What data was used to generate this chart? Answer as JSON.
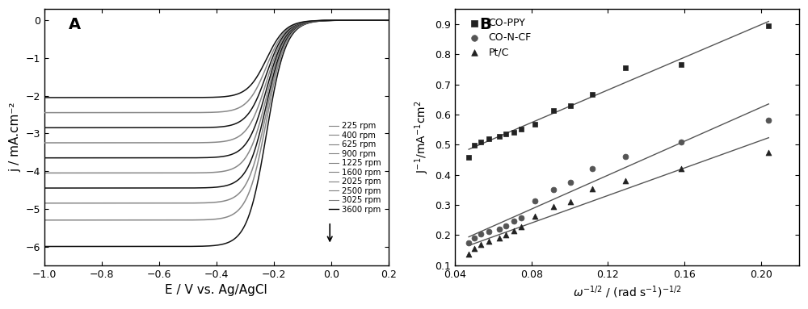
{
  "panel_A": {
    "label": "A",
    "xlabel": "E / V vs. Ag/AgCl",
    "ylabel": "j / mA.cm⁻²",
    "xlim": [
      -1.0,
      0.2
    ],
    "ylim": [
      -6.5,
      0.3
    ],
    "xticks": [
      -1.0,
      -0.8,
      -0.6,
      -0.4,
      -0.2,
      0.0,
      0.2
    ],
    "yticks": [
      0,
      -1,
      -2,
      -3,
      -4,
      -5,
      -6
    ],
    "rpms": [
      225,
      400,
      625,
      900,
      1225,
      1600,
      2025,
      2500,
      3025,
      3600
    ],
    "limiting_currents": [
      -2.05,
      -2.45,
      -2.85,
      -3.25,
      -3.65,
      -4.05,
      -4.45,
      -4.85,
      -5.3,
      -6.0
    ],
    "half_wave_potential": -0.225,
    "steepness": 30,
    "line_colors": [
      "#111111",
      "#888888",
      "#111111",
      "#888888",
      "#111111",
      "#888888",
      "#111111",
      "#888888",
      "#888888",
      "#111111"
    ],
    "legend_rpms": [
      "225 rpm",
      "400 rpm",
      "625 rpm",
      "900 rpm",
      "1225 rpm",
      "1600 rpm",
      "2025 rpm",
      "2500 rpm",
      "3025 rpm",
      "3600 rpm"
    ]
  },
  "panel_B": {
    "label": "B",
    "xlabel": "ω⁻¹² / (rad s⁻¹)⁻¹²",
    "ylabel": "J⁻¹/mA⁻¹cm²",
    "xlim": [
      0.04,
      0.22
    ],
    "ylim": [
      0.1,
      0.95
    ],
    "xticks": [
      0.04,
      0.08,
      0.12,
      0.16,
      0.2
    ],
    "yticks": [
      0.1,
      0.2,
      0.3,
      0.4,
      0.5,
      0.6,
      0.7,
      0.8,
      0.9
    ],
    "series": [
      {
        "name": "CO-PPY",
        "marker": "s",
        "color": "#222222",
        "x": [
          0.0471,
          0.05,
          0.0535,
          0.0577,
          0.0632,
          0.0667,
          0.0707,
          0.0745,
          0.0816,
          0.0913,
          0.1005,
          0.1118,
          0.1291,
          0.1581,
          0.2041
        ],
        "y": [
          0.458,
          0.497,
          0.51,
          0.52,
          0.527,
          0.535,
          0.542,
          0.553,
          0.567,
          0.614,
          0.63,
          0.667,
          0.754,
          0.765,
          0.895
        ]
      },
      {
        "name": "CO-N-CF",
        "marker": "o",
        "color": "#555555",
        "x": [
          0.0471,
          0.05,
          0.0535,
          0.0577,
          0.0632,
          0.0667,
          0.0707,
          0.0745,
          0.0816,
          0.0913,
          0.1005,
          0.1118,
          0.1291,
          0.1581,
          0.2041
        ],
        "y": [
          0.174,
          0.19,
          0.205,
          0.212,
          0.22,
          0.232,
          0.248,
          0.258,
          0.313,
          0.35,
          0.375,
          0.42,
          0.462,
          0.51,
          0.58
        ]
      },
      {
        "name": "Pt/C",
        "marker": "^",
        "color": "#222222",
        "x": [
          0.0471,
          0.05,
          0.0535,
          0.0577,
          0.0632,
          0.0667,
          0.0707,
          0.0745,
          0.0816,
          0.0913,
          0.1005,
          0.1118,
          0.1291,
          0.1581,
          0.2041
        ],
        "y": [
          0.137,
          0.155,
          0.17,
          0.18,
          0.19,
          0.2,
          0.215,
          0.228,
          0.263,
          0.295,
          0.31,
          0.355,
          0.38,
          0.42,
          0.475
        ]
      }
    ]
  },
  "background_color": "#ffffff",
  "plot_bg_color": "#ffffff"
}
